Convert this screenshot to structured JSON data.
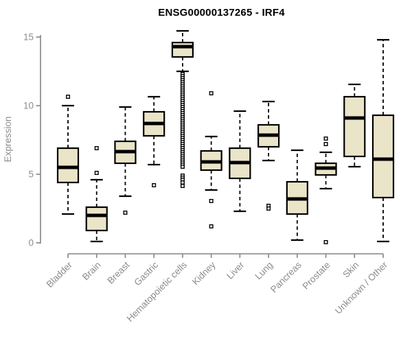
{
  "title": "ENSG00000137265 - IRF4",
  "colors": {
    "background": "#ffffff",
    "box_fill": "#EAE4C9",
    "box_stroke": "#000000",
    "median_stroke": "#000000",
    "whisker_stroke": "#000000",
    "outlier_stroke": "#000000",
    "outlier_fill": "#ffffff",
    "axis": "#848484",
    "tick_label": "#8C8C8C",
    "title": "#000000"
  },
  "chart_data": {
    "type": "boxplot",
    "title": "ENSG00000137265 - IRF4",
    "xlabel": "",
    "ylabel": "Expression",
    "ylim": [
      0,
      15
    ],
    "yticks": [
      0,
      5,
      10,
      15
    ],
    "grid": false,
    "legend": "none",
    "x_label_rotation": -45,
    "categories": [
      "Bladder",
      "Brain",
      "Breast",
      "Gastric",
      "Hematopoietic cells",
      "Kidney",
      "Liver",
      "Lung",
      "Pancreas",
      "Prostate",
      "Skin",
      "Unknown / Other"
    ],
    "series": [
      {
        "name": "Bladder",
        "whisker_low": 2.1,
        "q1": 4.4,
        "median": 5.5,
        "q3": 6.9,
        "whisker_high": 10.0,
        "outliers": [
          10.65
        ]
      },
      {
        "name": "Brain",
        "whisker_low": 0.1,
        "q1": 0.9,
        "median": 2.0,
        "q3": 2.6,
        "whisker_high": 4.6,
        "outliers": [
          5.1,
          6.9
        ]
      },
      {
        "name": "Breast",
        "whisker_low": 3.4,
        "q1": 5.8,
        "median": 6.65,
        "q3": 7.4,
        "whisker_high": 9.9,
        "outliers": [
          2.2
        ]
      },
      {
        "name": "Gastric",
        "whisker_low": 5.7,
        "q1": 7.8,
        "median": 8.7,
        "q3": 9.55,
        "whisker_high": 10.65,
        "outliers": [
          4.2
        ]
      },
      {
        "name": "Hematopoietic cells",
        "whisker_low": 12.5,
        "q1": 13.55,
        "median": 14.3,
        "q3": 14.6,
        "whisker_high": 15.45,
        "outliers": [
          12.3,
          12.15,
          12.0,
          11.85,
          11.7,
          11.55,
          11.4,
          11.25,
          11.1,
          10.95,
          10.8,
          10.65,
          10.5,
          10.35,
          10.2,
          10.05,
          9.9,
          9.75,
          9.6,
          9.45,
          9.3,
          9.15,
          9.0,
          8.85,
          8.7,
          8.55,
          8.4,
          8.25,
          8.1,
          7.95,
          7.8,
          7.65,
          7.5,
          7.35,
          7.2,
          7.05,
          6.9,
          6.75,
          6.6,
          6.45,
          6.3,
          6.15,
          6.0,
          5.85,
          5.7,
          5.55,
          4.9,
          4.75,
          4.6,
          4.4,
          4.15
        ]
      },
      {
        "name": "Kidney",
        "whisker_low": 3.85,
        "q1": 5.3,
        "median": 5.9,
        "q3": 6.7,
        "whisker_high": 7.75,
        "outliers": [
          10.9,
          3.05,
          1.2
        ]
      },
      {
        "name": "Liver",
        "whisker_low": 2.3,
        "q1": 4.7,
        "median": 5.85,
        "q3": 6.9,
        "whisker_high": 9.6,
        "outliers": []
      },
      {
        "name": "Lung",
        "whisker_low": 6.0,
        "q1": 7.0,
        "median": 7.85,
        "q3": 8.6,
        "whisker_high": 10.3,
        "outliers": [
          2.7,
          2.5
        ]
      },
      {
        "name": "Pancreas",
        "whisker_low": 0.2,
        "q1": 2.1,
        "median": 3.2,
        "q3": 4.45,
        "whisker_high": 6.75,
        "outliers": []
      },
      {
        "name": "Prostate",
        "whisker_low": 3.95,
        "q1": 4.95,
        "median": 5.45,
        "q3": 5.8,
        "whisker_high": 6.6,
        "outliers": [
          7.6,
          7.2,
          0.05
        ]
      },
      {
        "name": "Skin",
        "whisker_low": 5.55,
        "q1": 6.3,
        "median": 9.1,
        "q3": 10.65,
        "whisker_high": 11.55,
        "outliers": []
      },
      {
        "name": "Unknown / Other",
        "whisker_low": 0.1,
        "q1": 3.3,
        "median": 6.1,
        "q3": 9.3,
        "whisker_high": 14.8,
        "outliers": []
      }
    ]
  }
}
